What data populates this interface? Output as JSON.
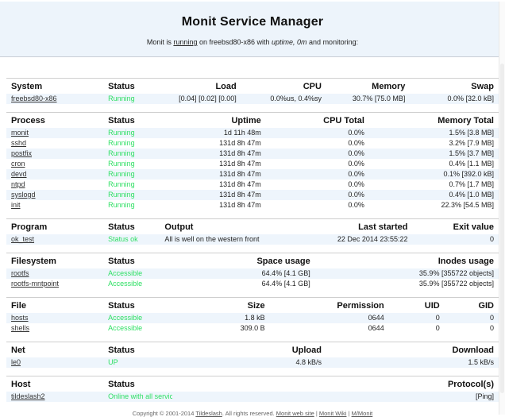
{
  "header": {
    "title": "Monit Service Manager",
    "subtitle": {
      "prefix": "Monit is ",
      "running_link": "running",
      "mid": " on freebsd80-x86 with ",
      "uptime_italic": "uptime, 0m",
      "suffix": " and monitoring:"
    }
  },
  "tables": {
    "system": {
      "headers": [
        "System",
        "Status",
        "Load",
        "CPU",
        "Memory",
        "Swap"
      ],
      "rows": [
        [
          "freebsd80-x86",
          "Running",
          "[0.04] [0.02] [0.00]",
          "0.0%us, 0.4%sy",
          "30.7% [75.0 MB]",
          "0.0% [32.0 kB]"
        ]
      ]
    },
    "process": {
      "headers": [
        "Process",
        "Status",
        "Uptime",
        "CPU Total",
        "Memory Total"
      ],
      "rows": [
        [
          "monit",
          "Running",
          "1d 11h 48m",
          "0.0%",
          "1.5% [3.8 MB]"
        ],
        [
          "sshd",
          "Running",
          "131d 8h 47m",
          "0.0%",
          "3.2% [7.9 MB]"
        ],
        [
          "postfix",
          "Running",
          "131d 8h 47m",
          "0.0%",
          "1.5% [3.7 MB]"
        ],
        [
          "cron",
          "Running",
          "131d 8h 47m",
          "0.0%",
          "0.4% [1.1 MB]"
        ],
        [
          "devd",
          "Running",
          "131d 8h 47m",
          "0.0%",
          "0.1% [392.0 kB]"
        ],
        [
          "ntpd",
          "Running",
          "131d 8h 47m",
          "0.0%",
          "0.7% [1.7 MB]"
        ],
        [
          "syslogd",
          "Running",
          "131d 8h 47m",
          "0.0%",
          "0.4% [1.0 MB]"
        ],
        [
          "init",
          "Running",
          "131d 8h 47m",
          "0.0%",
          "22.3% [54.5 MB]"
        ]
      ]
    },
    "program": {
      "headers": [
        "Program",
        "Status",
        "Output",
        "Last started",
        "Exit value"
      ],
      "rows": [
        [
          "ok_test",
          "Status ok",
          "All is well on the western front",
          "22 Dec 2014 23:55:22",
          "0"
        ]
      ]
    },
    "filesystem": {
      "headers": [
        "Filesystem",
        "Status",
        "Space usage",
        "Inodes usage"
      ],
      "rows": [
        [
          "rootfs",
          "Accessible",
          "64.4% [4.1 GB]",
          "35.9% [355722 objects]"
        ],
        [
          "rootfs-mntpoint",
          "Accessible",
          "64.4% [4.1 GB]",
          "35.9% [355722 objects]"
        ]
      ]
    },
    "file": {
      "headers": [
        "File",
        "Status",
        "Size",
        "Permission",
        "UID",
        "GID"
      ],
      "rows": [
        [
          "hosts",
          "Accessible",
          "1.8 kB",
          "0644",
          "0",
          "0"
        ],
        [
          "shells",
          "Accessible",
          "309.0 B",
          "0644",
          "0",
          "0"
        ]
      ]
    },
    "net": {
      "headers": [
        "Net",
        "Status",
        "Upload",
        "Download"
      ],
      "rows": [
        [
          "le0",
          "UP",
          "4.8 kB/s",
          "1.5 kB/s"
        ]
      ]
    },
    "host": {
      "headers": [
        "Host",
        "Status",
        "Protocol(s)"
      ],
      "rows": [
        [
          "tildeslash2",
          "Online with all services",
          "[Ping]"
        ]
      ]
    }
  },
  "footer": {
    "copyright_prefix": "Copyright © 2001-2014 ",
    "tildeslash_link": "Tildeslash",
    "rights": ". All rights reserved. ",
    "monit_web_site_link": "Monit web site",
    "sep1": " | ",
    "monit_wiki_link": "Monit Wiki",
    "sep2": " | ",
    "mmonit_link": "M/Monit"
  },
  "colors": {
    "header_band": "#edf4fb",
    "row_alt": "#eef5fc",
    "status_green": "#2ddf63",
    "border": "#cfcfcf",
    "link_text": "#333333"
  }
}
